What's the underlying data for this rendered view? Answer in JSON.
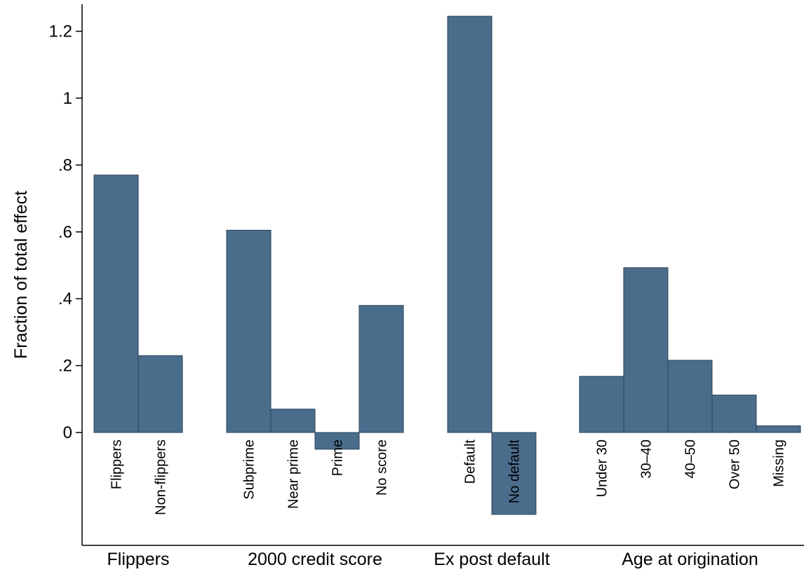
{
  "chart_data": {
    "type": "bar",
    "ylabel": "Fraction of total effect",
    "ylim": [
      -0.25,
      1.28
    ],
    "yticks": [
      {
        "value": 0,
        "label": "0"
      },
      {
        "value": 0.2,
        "label": ".2"
      },
      {
        "value": 0.4,
        "label": ".4"
      },
      {
        "value": 0.6,
        "label": ".6"
      },
      {
        "value": 0.8,
        "label": ".8"
      },
      {
        "value": 1.0,
        "label": "1"
      },
      {
        "value": 1.2,
        "label": "1.2"
      }
    ],
    "grid": false,
    "bar_color": "#4a6d8c",
    "groups": [
      {
        "label": "Flippers",
        "categories": [
          "Flippers",
          "Non-flippers"
        ],
        "values": [
          0.77,
          0.23
        ]
      },
      {
        "label": "2000 credit score",
        "categories": [
          "Subprime",
          "Near prime",
          "Prime",
          "No score"
        ],
        "values": [
          0.605,
          0.07,
          -0.05,
          0.38
        ]
      },
      {
        "label": "Ex post default",
        "categories": [
          "Default",
          "No default"
        ],
        "values": [
          1.245,
          -0.245
        ]
      },
      {
        "label": "Age at origination",
        "categories": [
          "Under 30",
          "30–40",
          "40–50",
          "Over 50",
          "Missing"
        ],
        "values": [
          0.168,
          0.493,
          0.216,
          0.112,
          0.02
        ]
      }
    ]
  }
}
